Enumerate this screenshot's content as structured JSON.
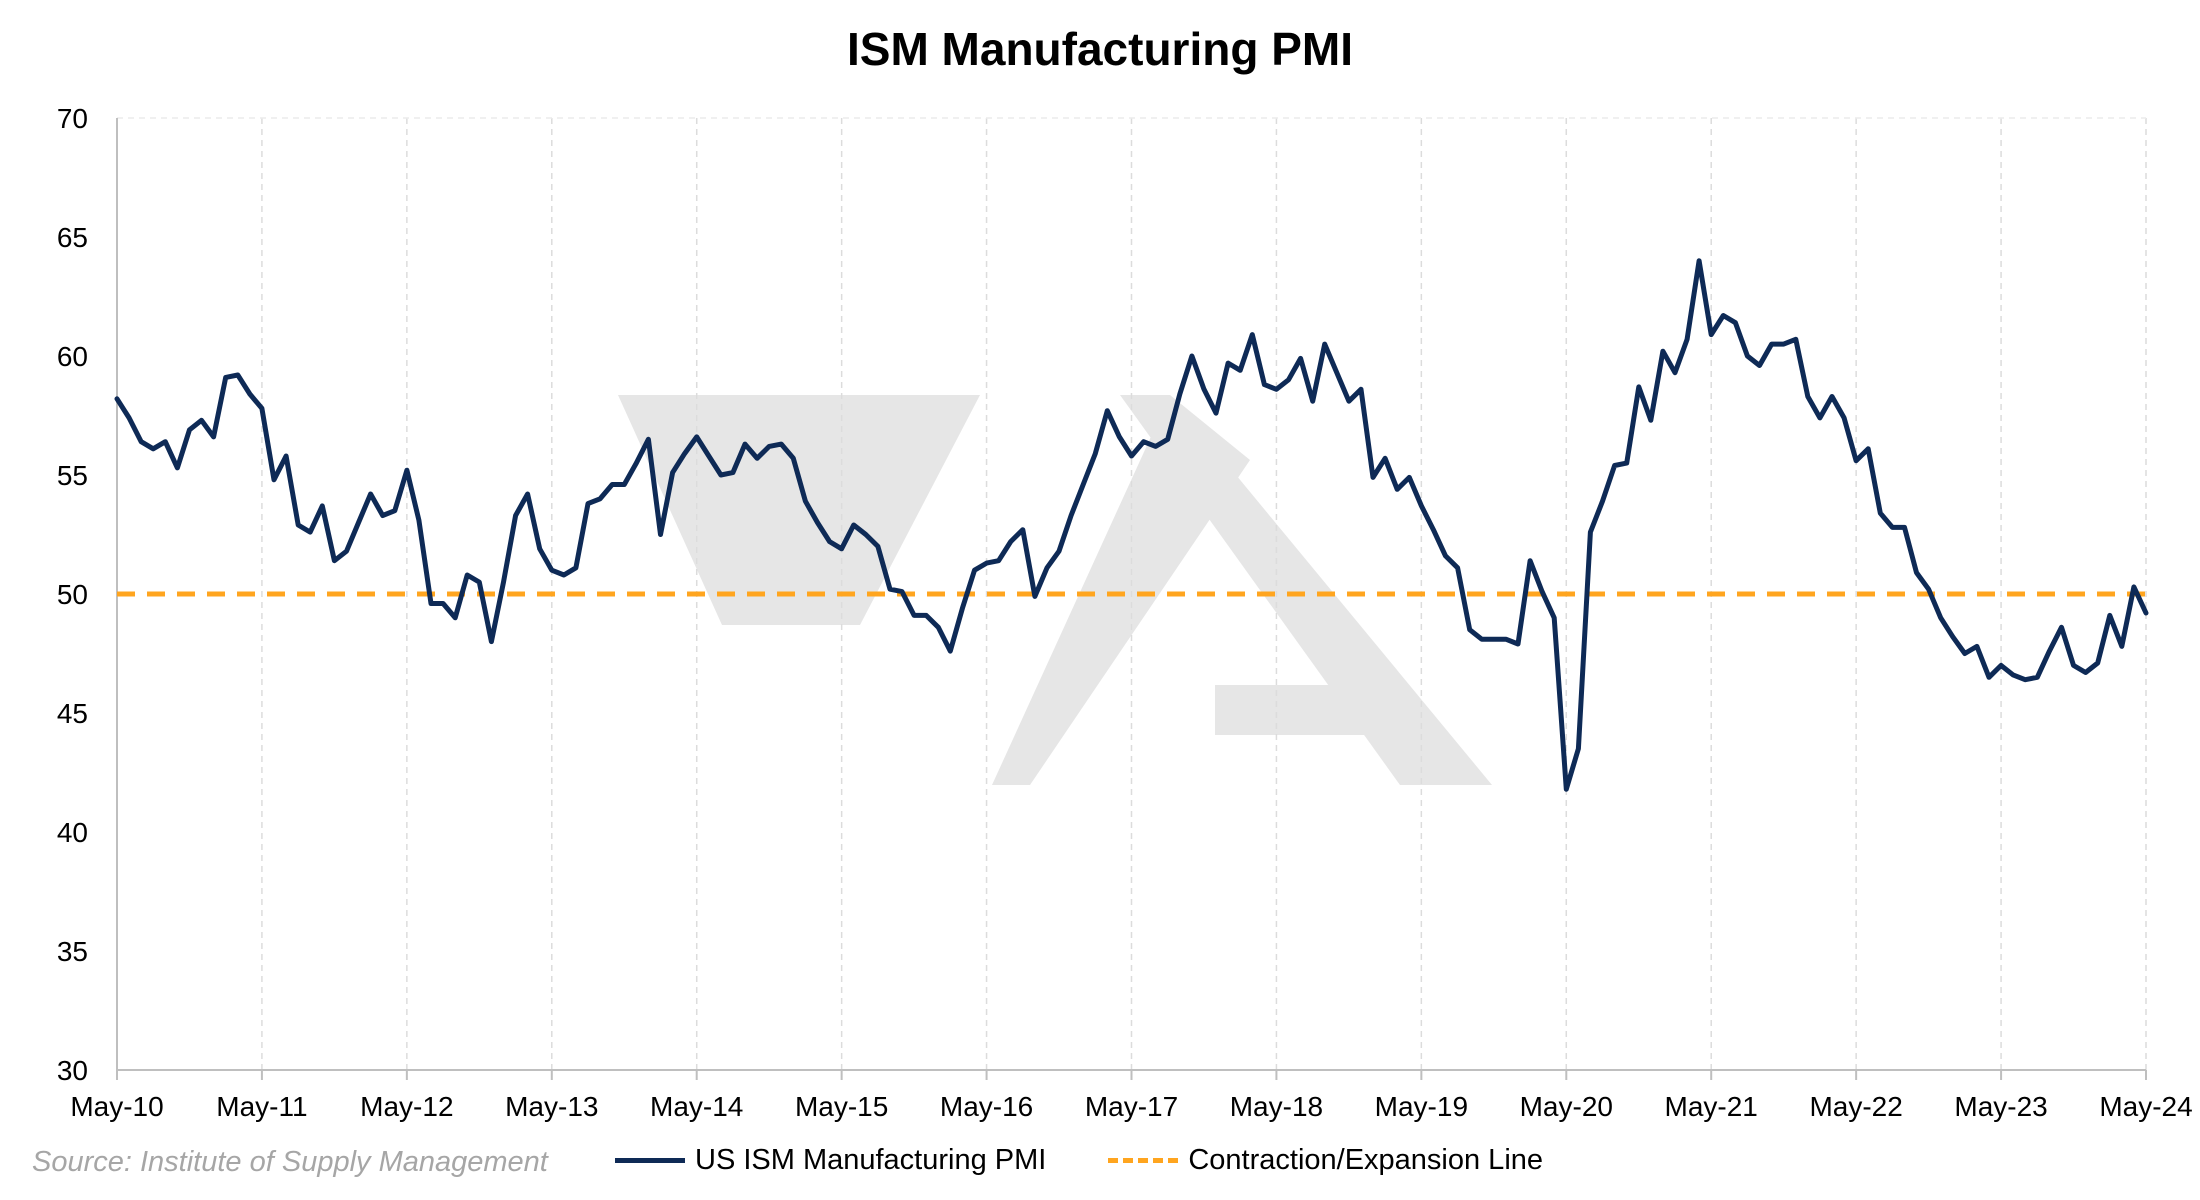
{
  "chart_data": {
    "type": "line",
    "title": "ISM Manufacturing PMI",
    "ylim": [
      30,
      70
    ],
    "yticks": [
      30,
      35,
      40,
      45,
      50,
      55,
      60,
      65,
      70
    ],
    "x_start": "May-10",
    "x_end": "May-24",
    "xticks": [
      "May-10",
      "May-11",
      "May-12",
      "May-13",
      "May-14",
      "May-15",
      "May-16",
      "May-17",
      "May-18",
      "May-19",
      "May-20",
      "May-21",
      "May-22",
      "May-23",
      "May-24"
    ],
    "grid": "vertical dashed",
    "series": [
      {
        "name": "US ISM Manufacturing PMI",
        "color": "#0e2a56",
        "values": [
          58.2,
          57.4,
          56.4,
          56.1,
          56.4,
          55.3,
          56.9,
          57.3,
          56.6,
          59.1,
          59.2,
          58.4,
          57.8,
          54.8,
          55.8,
          52.9,
          52.6,
          53.7,
          51.4,
          51.8,
          53.0,
          54.2,
          53.3,
          53.5,
          55.2,
          53.1,
          49.6,
          49.6,
          49.0,
          50.8,
          50.5,
          48.0,
          50.5,
          53.3,
          54.2,
          51.9,
          51.0,
          50.8,
          51.1,
          53.8,
          54.0,
          54.6,
          54.6,
          55.5,
          56.5,
          52.5,
          55.1,
          55.9,
          56.6,
          55.8,
          55.0,
          55.1,
          56.3,
          55.7,
          56.2,
          56.3,
          55.7,
          53.9,
          53.0,
          52.2,
          51.9,
          52.9,
          52.5,
          52.0,
          50.2,
          50.1,
          49.1,
          49.1,
          48.6,
          47.6,
          49.4,
          51.0,
          51.3,
          51.4,
          52.2,
          52.7,
          49.9,
          51.1,
          51.8,
          53.3,
          54.6,
          55.9,
          57.7,
          56.6,
          55.8,
          56.4,
          56.2,
          56.5,
          58.4,
          60.0,
          58.6,
          57.6,
          59.7,
          59.4,
          60.9,
          58.8,
          58.6,
          59.0,
          59.9,
          58.1,
          60.5,
          59.3,
          58.1,
          58.6,
          54.9,
          55.7,
          54.4,
          54.9,
          53.7,
          52.7,
          51.6,
          51.1,
          48.5,
          48.1,
          48.1,
          48.1,
          47.9,
          51.4,
          50.1,
          49.0,
          41.8,
          43.5,
          52.6,
          53.9,
          55.4,
          55.5,
          58.7,
          57.3,
          60.2,
          59.3,
          60.7,
          64.0,
          60.9,
          61.7,
          61.4,
          60.0,
          59.6,
          60.5,
          60.5,
          60.7,
          58.3,
          57.4,
          58.3,
          57.4,
          55.6,
          56.1,
          53.4,
          52.8,
          52.8,
          50.9,
          50.2,
          49.0,
          48.2,
          47.5,
          47.8,
          46.5,
          47.0,
          46.6,
          46.4,
          46.5,
          47.6,
          48.6,
          47.0,
          46.7,
          47.1,
          49.1,
          47.8,
          50.3,
          49.2
        ]
      },
      {
        "name": "Contraction/Expansion Line",
        "color": "#ffa51f",
        "value": 50
      }
    ],
    "source": "Source: Institute of Supply Management"
  }
}
